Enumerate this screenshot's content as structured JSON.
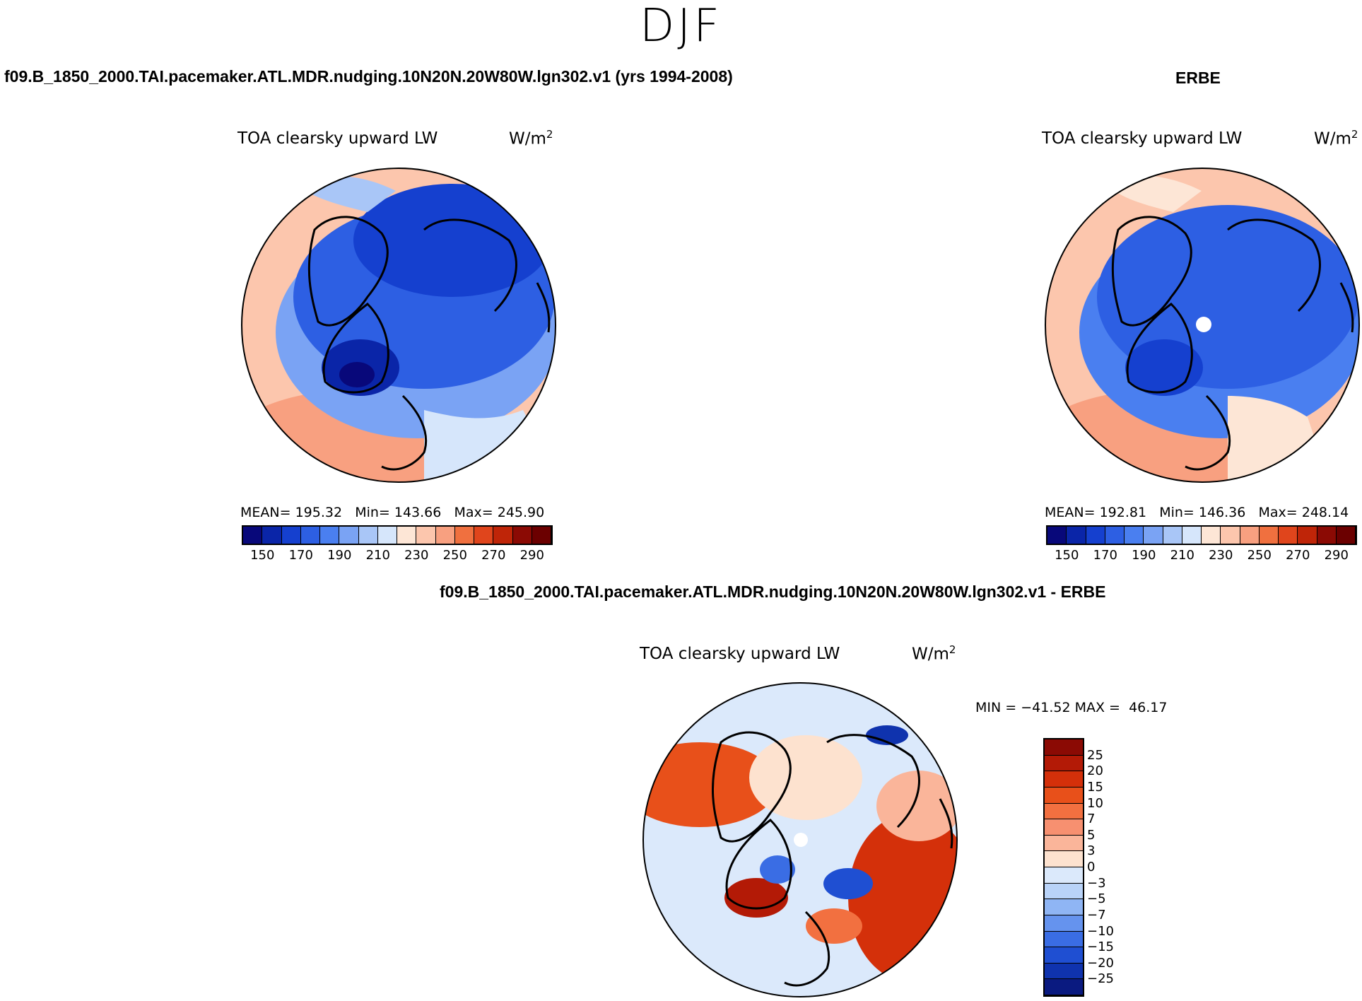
{
  "figure": {
    "season": "DJF",
    "diff_title": "f09.B_1850_2000.TAI.pacemaker.ATL.MDR.nudging.10N20N.20W80W.lgn302.v1 - ERBE"
  },
  "chart_data": [
    {
      "type": "heatmap",
      "projection": "north-polar-stereographic",
      "case_title": "f09.B_1850_2000.TAI.pacemaker.ATL.MDR.nudging.10N20N.20W80W.lgn302.v1 (yrs 1994-2008)",
      "title": "TOA clearsky upward LW",
      "units": "W/m",
      "units_sup": "2",
      "stats": {
        "mean_label": "MEAN=",
        "mean": "195.32",
        "min_label": "Min=",
        "min": "143.66",
        "max_label": "Max=",
        "max": "245.90"
      },
      "colorbar": {
        "orientation": "horizontal",
        "levels": [
          150,
          160,
          170,
          180,
          190,
          200,
          210,
          220,
          230,
          240,
          250,
          260,
          270,
          280,
          290
        ],
        "tick_labels": [
          "150",
          "170",
          "190",
          "210",
          "230",
          "250",
          "270",
          "290"
        ],
        "colors": [
          "#08087a",
          "#0a25a8",
          "#1540cf",
          "#2d5fe3",
          "#4a7ff0",
          "#7aa3f4",
          "#a9c6f7",
          "#d6e6fb",
          "#fde6d6",
          "#fcc6ad",
          "#f8a080",
          "#f0703f",
          "#e0451c",
          "#bf2508",
          "#8b0a04",
          "#6b0000"
        ]
      }
    },
    {
      "type": "heatmap",
      "projection": "north-polar-stereographic",
      "case_title": "ERBE",
      "title": "TOA clearsky upward LW",
      "units": "W/m",
      "units_sup": "2",
      "stats": {
        "mean_label": "MEAN=",
        "mean": "192.81",
        "min_label": "Min=",
        "min": "146.36",
        "max_label": "Max=",
        "max": "248.14"
      },
      "colorbar": {
        "orientation": "horizontal",
        "levels": [
          150,
          160,
          170,
          180,
          190,
          200,
          210,
          220,
          230,
          240,
          250,
          260,
          270,
          280,
          290
        ],
        "tick_labels": [
          "150",
          "170",
          "190",
          "210",
          "230",
          "250",
          "270",
          "290"
        ],
        "colors": [
          "#08087a",
          "#0a25a8",
          "#1540cf",
          "#2d5fe3",
          "#4a7ff0",
          "#7aa3f4",
          "#a9c6f7",
          "#d6e6fb",
          "#fde6d6",
          "#fcc6ad",
          "#f8a080",
          "#f0703f",
          "#e0451c",
          "#bf2508",
          "#8b0a04",
          "#6b0000"
        ]
      }
    },
    {
      "type": "heatmap",
      "projection": "north-polar-stereographic",
      "title": "TOA clearsky upward LW",
      "units": "W/m",
      "units_sup": "2",
      "minmax": {
        "min_label": "MIN =",
        "min": "−41.52",
        "max_label": "MAX =",
        "max": "46.17"
      },
      "colorbar": {
        "orientation": "vertical",
        "levels": [
          25,
          20,
          15,
          10,
          7,
          5,
          3,
          0,
          -3,
          -5,
          -7,
          -10,
          -15,
          -20,
          -25
        ],
        "tick_labels": [
          "25",
          "20",
          "15",
          "10",
          "7",
          "5",
          "3",
          "0",
          "−3",
          "−5",
          "−7",
          "−10",
          "−15",
          "−20",
          "−25"
        ],
        "colors": [
          "#8b0a04",
          "#b31a06",
          "#d4300a",
          "#e8501a",
          "#f27040",
          "#f79070",
          "#fab59a",
          "#fde2cf",
          "#dbe9fb",
          "#b9d3f8",
          "#8fb5f4",
          "#6593ee",
          "#3a6de4",
          "#1f4fd2",
          "#0f33ae",
          "#0a1a80"
        ]
      }
    }
  ]
}
